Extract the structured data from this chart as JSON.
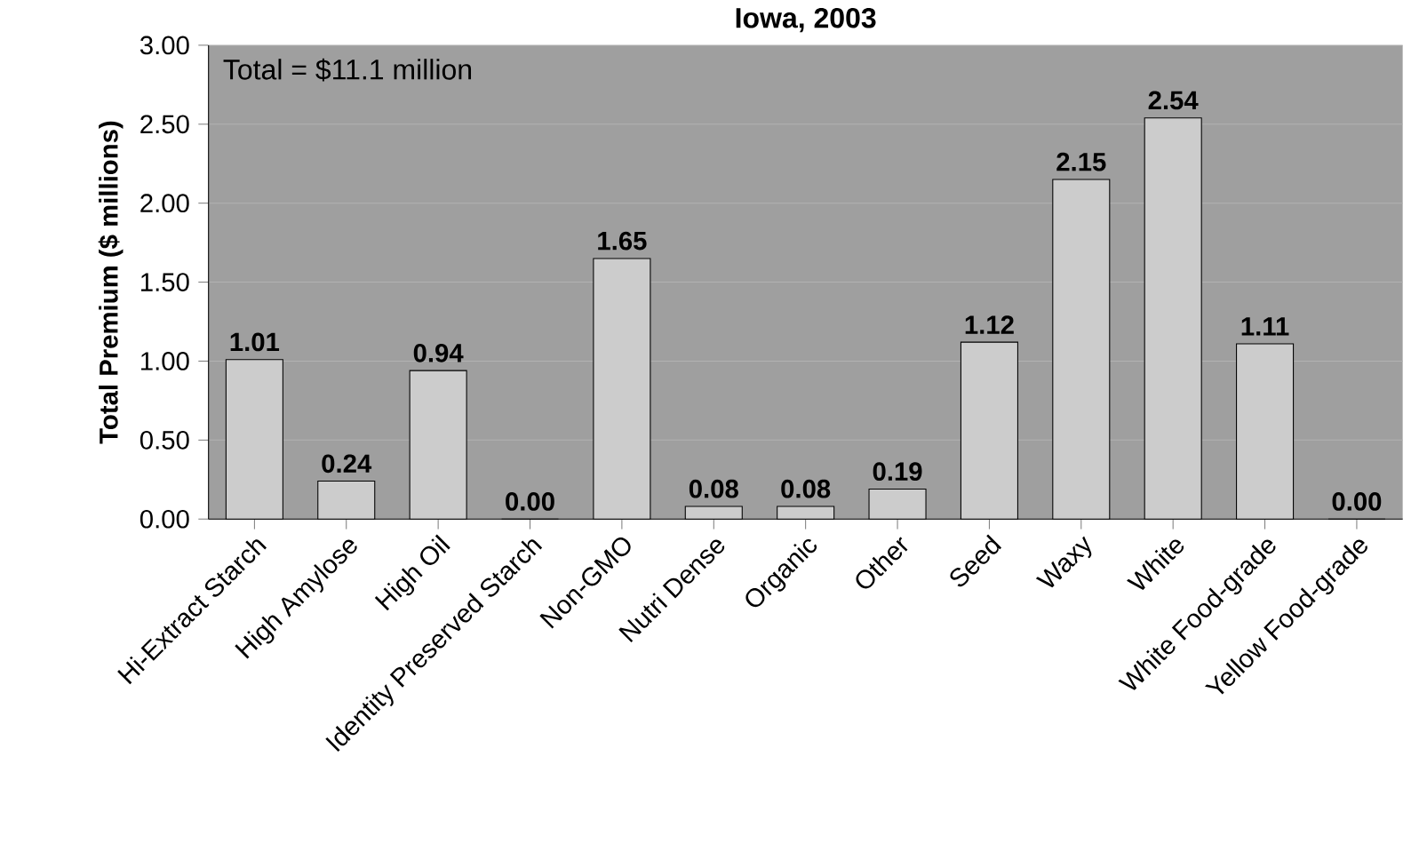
{
  "chart_data": {
    "type": "bar",
    "title": "Iowa, 2003",
    "ylabel": "Total Premium ($ millions)",
    "categories": [
      "Hi-Extract Starch",
      "High Amylose",
      "High Oil",
      "Identity Preserved Starch",
      "Non-GMO",
      "Nutri Dense",
      "Organic",
      "Other",
      "Seed",
      "Waxy",
      "White",
      "White Food-grade",
      "Yellow Food-grade"
    ],
    "values": [
      1.01,
      0.24,
      0.94,
      0.0,
      1.65,
      0.08,
      0.08,
      0.19,
      1.12,
      2.15,
      2.54,
      1.11,
      0.0
    ],
    "value_labels": [
      "1.01",
      "0.24",
      "0.94",
      "0.00",
      "1.65",
      "0.08",
      "0.08",
      "0.19",
      "1.12",
      "2.15",
      "2.54",
      "1.11",
      "0.00"
    ],
    "color": "#cccccc",
    "ylim": [
      0,
      3
    ],
    "yticks": [
      {
        "value": 0,
        "label": "0.00"
      },
      {
        "value": 0.5,
        "label": "0.50"
      },
      {
        "value": 1,
        "label": "1.00"
      },
      {
        "value": 1.5,
        "label": "1.50"
      },
      {
        "value": 2,
        "label": "2.00"
      },
      {
        "value": 2.5,
        "label": "2.50"
      },
      {
        "value": 3,
        "label": "3.00"
      }
    ],
    "grid": "y",
    "annotations": [
      "Total = $11.1 million"
    ]
  }
}
